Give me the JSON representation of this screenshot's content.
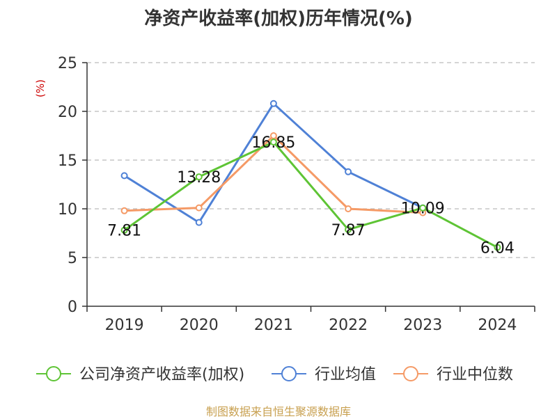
{
  "chart_data": {
    "type": "line",
    "title": "净资产收益率(加权)历年情况(%)",
    "ylabel": "(%)",
    "xlabel": "",
    "ylim": [
      0,
      25
    ],
    "yticks": [
      0,
      5,
      10,
      15,
      20,
      25
    ],
    "categories": [
      "2019",
      "2020",
      "2021",
      "2022",
      "2023",
      "2024"
    ],
    "grid": true,
    "legend_position": "bottom",
    "series": [
      {
        "name": "公司净资产收益率(加权)",
        "color": "#5ec435",
        "values": [
          7.81,
          13.28,
          16.85,
          7.87,
          10.09,
          6.04
        ],
        "labels": [
          "7.81",
          "13.28",
          "16.85",
          "7.87",
          "10.09",
          "6.04"
        ]
      },
      {
        "name": "行业均值",
        "color": "#4f81d6",
        "values": [
          13.4,
          8.6,
          20.8,
          13.8,
          10.1,
          null
        ]
      },
      {
        "name": "行业中位数",
        "color": "#f59a66",
        "values": [
          9.8,
          10.1,
          17.5,
          10.0,
          9.6,
          null
        ]
      }
    ]
  },
  "source_note": "制图数据来自恒生聚源数据库"
}
